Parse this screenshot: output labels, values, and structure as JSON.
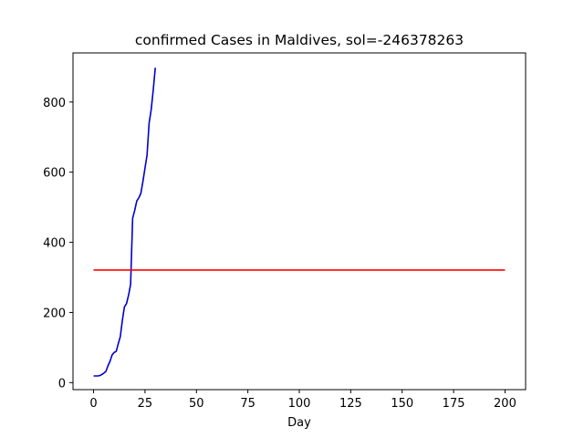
{
  "chart_data": {
    "type": "line",
    "title": "confirmed Cases in Maldives, sol=-246378263",
    "xlabel": "Day",
    "ylabel": "",
    "xlim": [
      -10,
      210
    ],
    "ylim": [
      -20,
      940
    ],
    "xticks": [
      0,
      25,
      50,
      75,
      100,
      125,
      150,
      175,
      200
    ],
    "yticks": [
      0,
      200,
      400,
      600,
      800
    ],
    "grid": false,
    "series": [
      {
        "color": "#0000cc",
        "x": [
          0,
          1,
          2,
          3,
          4,
          5,
          6,
          7,
          8,
          9,
          10,
          11,
          12,
          13,
          14,
          15,
          16,
          17,
          18,
          19,
          20,
          21,
          22,
          23,
          24,
          25,
          26,
          27,
          28,
          29,
          30
        ],
        "y": [
          19,
          19,
          19,
          20,
          23,
          27,
          32,
          48,
          61,
          79,
          86,
          89,
          111,
          131,
          178,
          216,
          225,
          249,
          280,
          469,
          491,
          518,
          527,
          540,
          574,
          612,
          649,
          740,
          778,
          834,
          898
        ]
      },
      {
        "color": "#ff0000",
        "x": [
          0,
          200
        ],
        "y": [
          321,
          321
        ]
      }
    ]
  }
}
